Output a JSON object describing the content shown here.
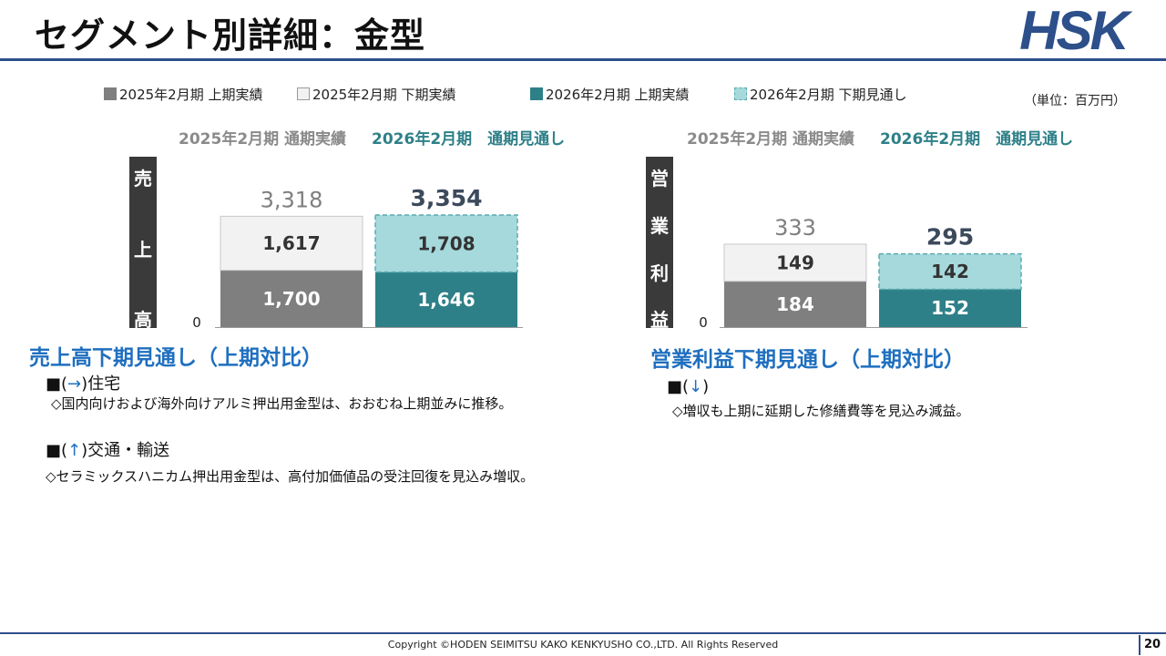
{
  "slide": {
    "title": "セグメント別詳細：金型",
    "unit": "（単位：百万円）",
    "logo_text": "HSK",
    "copyright": "Copyright ©HODEN SEIMITSU KAKO KENKYUSHO CO.,LTD. All Rights Reserved",
    "page_number": "20"
  },
  "legend": [
    {
      "label": "2025年2月期 上期実績",
      "color": "#7f7f7f"
    },
    {
      "label": "2025年2月期 下期実績",
      "color": "#f2f2f2"
    },
    {
      "label": "2026年2月期 上期実績",
      "color": "#2e8088"
    },
    {
      "label": "2026年2月期 下期見通し",
      "color": "#a6d9dc"
    }
  ],
  "column_headers": {
    "actual": "2025年2月期 通期実績",
    "forecast": "2026年2月期　通期見通し"
  },
  "chart_data": [
    {
      "type": "bar",
      "stacked": true,
      "metric_label": [
        "売",
        "上",
        "高"
      ],
      "categories": [
        "2025年2月期 通期実績",
        "2026年2月期　通期見通し"
      ],
      "series": [
        {
          "name": "上期",
          "values": [
            1700,
            1646
          ],
          "colors": [
            "#7f7f7f",
            "#2e8088"
          ]
        },
        {
          "name": "下期",
          "values": [
            1617,
            1708
          ],
          "colors": [
            "#f2f2f2",
            "#a6d9dc"
          ]
        }
      ],
      "totals": [
        "3,318",
        "3,354"
      ],
      "value_labels": [
        [
          "1,700",
          "1,646"
        ],
        [
          "1,617",
          "1,708"
        ]
      ],
      "zero_label": "0",
      "ylim": [
        0,
        3354
      ]
    },
    {
      "type": "bar",
      "stacked": true,
      "metric_label": [
        "営",
        "業",
        "利",
        "益"
      ],
      "categories": [
        "2025年2月期 通期実績",
        "2026年2月期　通期見通し"
      ],
      "series": [
        {
          "name": "上期",
          "values": [
            184,
            152
          ],
          "colors": [
            "#7f7f7f",
            "#2e8088"
          ]
        },
        {
          "name": "下期",
          "values": [
            149,
            142
          ],
          "colors": [
            "#f2f2f2",
            "#a6d9dc"
          ]
        }
      ],
      "totals": [
        "333",
        "295"
      ],
      "value_labels": [
        [
          "184",
          "152"
        ],
        [
          "149",
          "142"
        ]
      ],
      "zero_label": "0",
      "ylim": [
        0,
        333
      ]
    }
  ],
  "sales_section": {
    "title": "売上高下期見通し（上期対比）",
    "items": [
      {
        "prefix": "■(",
        "arrow": "→",
        "suffix": ")住宅",
        "note": "◇国内向けおよび海外向けアルミ押出用金型は、おおむね上期並みに推移。"
      },
      {
        "prefix": "■(",
        "arrow": "↑",
        "suffix": ")交通・輸送",
        "note": "◇セラミックスハニカム押出用金型は、高付加価値品の受注回復を見込み増収。"
      }
    ]
  },
  "profit_section": {
    "title": "営業利益下期見通し（上期対比）",
    "items": [
      {
        "prefix": "■(",
        "arrow": "↓",
        "suffix": ")",
        "note": "◇増収も上期に延期した修繕費等を見込み減益。"
      }
    ]
  }
}
